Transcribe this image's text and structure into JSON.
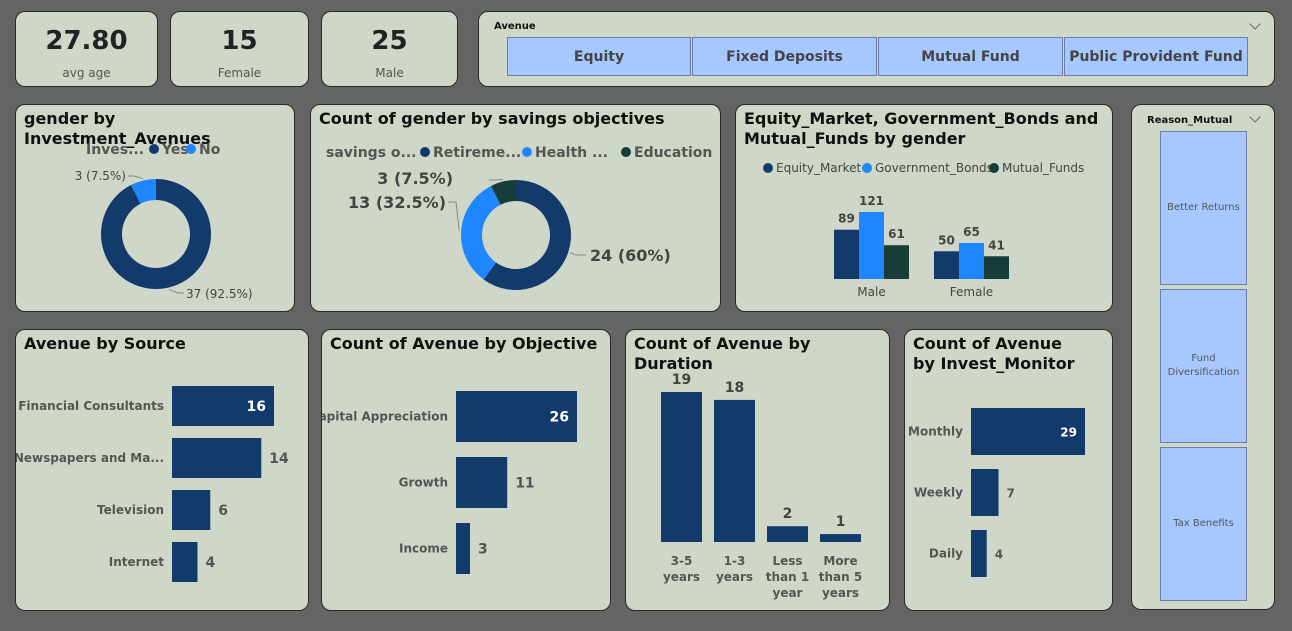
{
  "kpis": [
    {
      "value": "27.80",
      "label": "avg age"
    },
    {
      "value": "15",
      "label": "Female"
    },
    {
      "value": "25",
      "label": "Male"
    }
  ],
  "avenue_slicer": {
    "title": "Avenue",
    "options": [
      "Equity",
      "Fixed Deposits",
      "Mutual Fund",
      "Public Provident Fund"
    ]
  },
  "reason_slicer": {
    "title": "Reason_Mutual",
    "options": [
      "Better Returns",
      "Fund Diversification",
      "Tax Benefits"
    ]
  },
  "colors": {
    "dark": "#123a6b",
    "bright": "#1f86ff",
    "teal": "#173d38"
  },
  "chart_data": [
    {
      "id": "gender_avenues",
      "type": "pie",
      "title": "gender by Investment_Avenues",
      "legend_title": "Inves...",
      "labels": [
        "Yes",
        "No"
      ],
      "values": [
        37,
        3
      ],
      "value_labels": [
        "37 (92.5%)",
        "3 (7.5%)"
      ],
      "colors": [
        "#123a6b",
        "#1f86ff"
      ]
    },
    {
      "id": "savings_objectives",
      "type": "pie",
      "title": "Count of gender by savings objectives",
      "legend_title": "savings o...",
      "labels": [
        "Retireme...",
        "Health ...",
        "Education"
      ],
      "values": [
        24,
        13,
        3
      ],
      "value_labels": [
        "24 (60%)",
        "13 (32.5%)",
        "3 (7.5%)"
      ],
      "colors": [
        "#123a6b",
        "#1f86ff",
        "#173d38"
      ]
    },
    {
      "id": "market_bonds_funds",
      "type": "bar",
      "title": "Equity_Market, Government_Bonds and Mutual_Funds by gender",
      "categories": [
        "Male",
        "Female"
      ],
      "series": [
        {
          "name": "Equity_Market",
          "values": [
            89,
            50
          ],
          "color": "#123a6b"
        },
        {
          "name": "Government_Bonds",
          "values": [
            121,
            65
          ],
          "color": "#1f86ff"
        },
        {
          "name": "Mutual_Funds",
          "values": [
            61,
            41
          ],
          "color": "#173d38"
        }
      ]
    },
    {
      "id": "avenue_source",
      "type": "bar",
      "orientation": "horizontal",
      "title": "Avenue by Source",
      "categories": [
        "Financial Consultants",
        "Newspapers and Ma...",
        "Television",
        "Internet"
      ],
      "values": [
        16,
        14,
        6,
        4
      ]
    },
    {
      "id": "avenue_objective",
      "type": "bar",
      "orientation": "horizontal",
      "title": "Count of Avenue by Objective",
      "categories": [
        "Capital Appreciation",
        "Growth",
        "Income"
      ],
      "values": [
        26,
        11,
        3
      ]
    },
    {
      "id": "avenue_duration",
      "type": "bar",
      "orientation": "vertical",
      "title": "Count of Avenue by Duration",
      "categories": [
        "3-5 years",
        "1-3 years",
        "Less than 1 year",
        "More than 5 years"
      ],
      "values": [
        19,
        18,
        2,
        1
      ]
    },
    {
      "id": "avenue_monitor",
      "type": "bar",
      "orientation": "horizontal",
      "title": "Count of Avenue by Invest_Monitor",
      "categories": [
        "Monthly",
        "Weekly",
        "Daily"
      ],
      "values": [
        29,
        7,
        4
      ]
    }
  ]
}
